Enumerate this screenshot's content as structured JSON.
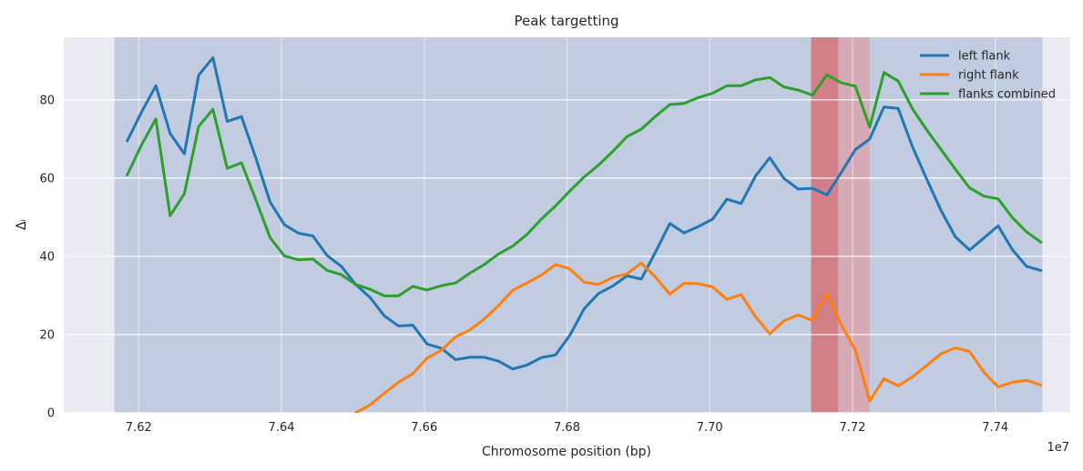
{
  "chart_data": {
    "type": "line",
    "title": "Peak targetting",
    "xlabel": "Chromosome position (bp)",
    "ylabel": "Δᵢ",
    "x_offset_label": "1e7",
    "xlim": [
      7.6095,
      7.7505
    ],
    "ylim": [
      0,
      96
    ],
    "x_ticks": [
      7.62,
      7.64,
      7.66,
      7.68,
      7.7,
      7.72,
      7.74
    ],
    "x_tick_labels": [
      "7.62",
      "7.64",
      "7.66",
      "7.68",
      "7.70",
      "7.72",
      "7.74"
    ],
    "y_ticks": [
      0,
      20,
      40,
      60,
      80
    ],
    "y_tick_labels": [
      "0",
      "20",
      "40",
      "60",
      "80"
    ],
    "grid": true,
    "legend_position": "top-right",
    "background_color": "#eaeaf2",
    "shaded_regions": [
      {
        "x0": 7.6166,
        "x1": 7.7466,
        "color": "#4c72b0",
        "opacity": 0.25
      },
      {
        "x0": 7.7142,
        "x1": 7.718,
        "color": "#e04040",
        "opacity": 0.55
      },
      {
        "x0": 7.718,
        "x1": 7.7224,
        "color": "#f08080",
        "opacity": 0.45
      }
    ],
    "x": [
      7.6184,
      7.6204,
      7.6224,
      7.6244,
      7.6264,
      7.6284,
      7.6304,
      7.6324,
      7.6344,
      7.6364,
      7.6384,
      7.6404,
      7.6424,
      7.6444,
      7.6464,
      7.6484,
      7.6504,
      7.6524,
      7.6544,
      7.6564,
      7.6584,
      7.6604,
      7.6624,
      7.6644,
      7.6664,
      7.6684,
      7.6704,
      7.6724,
      7.6744,
      7.6764,
      7.6784,
      7.6804,
      7.6824,
      7.6844,
      7.6864,
      7.6884,
      7.6904,
      7.6924,
      7.6944,
      7.6964,
      7.6984,
      7.7004,
      7.7024,
      7.7044,
      7.7064,
      7.7084,
      7.7104,
      7.7124,
      7.7144,
      7.7164,
      7.7184,
      7.7204,
      7.7224,
      7.7244,
      7.7264,
      7.7284,
      7.7304,
      7.7324,
      7.7344,
      7.7364,
      7.7384,
      7.7404,
      7.7424,
      7.7444,
      7.7464
    ],
    "series": [
      {
        "name": "left flank",
        "color": "#1f77b4",
        "values": [
          69.5,
          76.9,
          83.6,
          71.4,
          66.2,
          86.3,
          90.8,
          74.5,
          75.7,
          65.2,
          53.9,
          48.1,
          45.9,
          45.2,
          40.2,
          37.4,
          32.8,
          29.5,
          24.8,
          22.2,
          22.4,
          17.6,
          16.5,
          13.6,
          14.2,
          14.2,
          13.2,
          11.2,
          12.2,
          14.1,
          14.8,
          19.8,
          26.6,
          30.5,
          32.4,
          35.0,
          34.2,
          41.1,
          48.4,
          46.0,
          47.6,
          49.5,
          54.6,
          53.5,
          60.5,
          65.2,
          59.9,
          57.2,
          57.4,
          55.7,
          61.4,
          67.3,
          70.0,
          78.2,
          77.8,
          68.0,
          59.7,
          51.7,
          45.0,
          41.6,
          44.7,
          47.8,
          41.7,
          37.4,
          36.4
        ]
      },
      {
        "name": "right flank",
        "color": "#ff7f0e",
        "values": [
          null,
          null,
          null,
          null,
          null,
          null,
          null,
          null,
          null,
          null,
          null,
          null,
          null,
          null,
          null,
          null,
          0.0,
          2.0,
          5.0,
          7.8,
          10.0,
          14.0,
          16.0,
          19.4,
          21.2,
          24.0,
          27.4,
          31.3,
          33.2,
          35.2,
          37.9,
          36.8,
          33.4,
          32.8,
          34.6,
          35.5,
          38.3,
          34.7,
          30.3,
          33.1,
          33.0,
          32.2,
          29.0,
          30.2,
          24.6,
          20.2,
          23.5,
          25.0,
          23.6,
          30.6,
          22.6,
          16.0,
          3.0,
          8.7,
          6.9,
          9.2,
          12.1,
          15.1,
          16.6,
          15.7,
          10.4,
          6.6,
          7.8,
          8.3,
          7.1
        ]
      },
      {
        "name": "flanks combined",
        "color": "#2ca02c",
        "values": [
          60.8,
          68.5,
          75.1,
          50.4,
          56.0,
          73.2,
          77.6,
          62.5,
          63.9,
          54.5,
          44.8,
          40.1,
          39.1,
          39.3,
          36.4,
          35.3,
          32.8,
          31.6,
          29.9,
          29.9,
          32.3,
          31.4,
          32.5,
          33.2,
          35.7,
          37.9,
          40.6,
          42.6,
          45.6,
          49.5,
          52.9,
          56.7,
          60.3,
          63.3,
          66.8,
          70.6,
          72.5,
          75.8,
          78.8,
          79.1,
          80.6,
          81.7,
          83.6,
          83.6,
          85.1,
          85.7,
          83.3,
          82.5,
          81.2,
          86.4,
          84.4,
          83.5,
          73.0,
          87.0,
          84.8,
          77.7,
          72.3,
          67.3,
          62.3,
          57.5,
          55.4,
          54.7,
          49.9,
          46.2,
          43.6
        ]
      }
    ]
  }
}
